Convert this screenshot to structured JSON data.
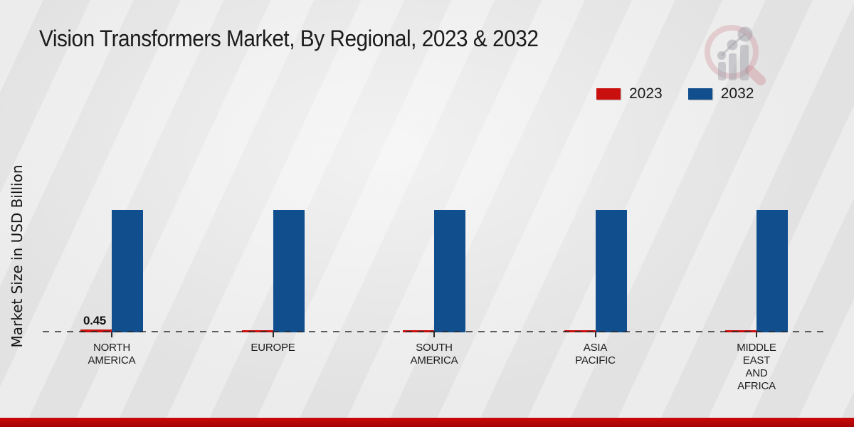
{
  "page": {
    "background_color": "#e8e8e8",
    "footer_band_color": "#b60606"
  },
  "chart_data": {
    "type": "bar",
    "title": "Vision Transformers Market, By Regional, 2023 & 2032",
    "xlabel": "",
    "ylabel": "Market Size in USD Billion",
    "categories": [
      "NORTH AMERICA",
      "EUROPE",
      "SOUTH AMERICA",
      "ASIA PACIFIC",
      "MIDDLE EAST AND AFRICA"
    ],
    "series": [
      {
        "name": "2023",
        "color": "#c9100f",
        "values": [
          0.45,
          0.4,
          0.4,
          0.4,
          0.4
        ],
        "data_labels": [
          "0.45",
          "",
          "",
          "",
          ""
        ],
        "estimated": false
      },
      {
        "name": "2032",
        "color": "#114e8d",
        "values": [
          22,
          22,
          22,
          22,
          22
        ],
        "data_labels": [
          "",
          "",
          "",
          "",
          ""
        ],
        "estimated": true
      }
    ],
    "ylim": [
      0,
      24
    ],
    "grid": false,
    "baseline_style": "dashed",
    "legend_position": "top-right"
  },
  "logo": {
    "name": "magnifier-bar-chart-watermark",
    "ring_color": "rgba(205,135,145,0.32)",
    "bars_color": "rgba(158,158,166,0.45)"
  }
}
